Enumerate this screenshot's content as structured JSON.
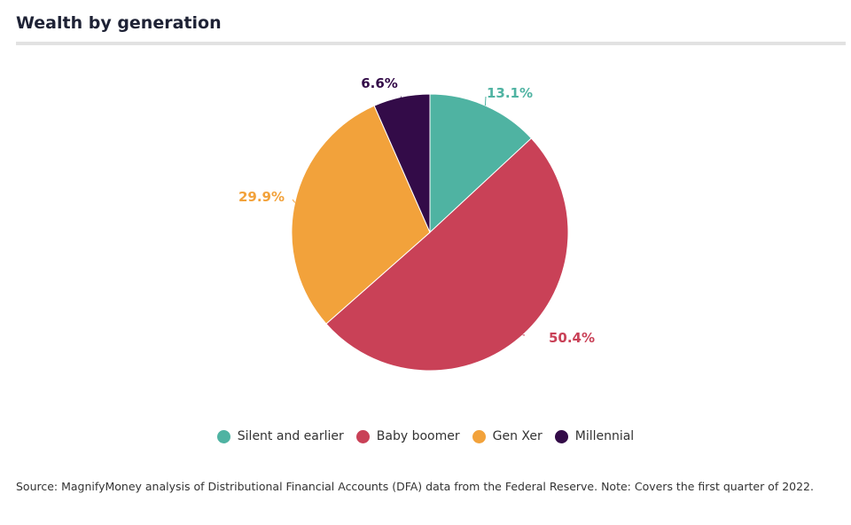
{
  "chart_data": {
    "type": "pie",
    "title": "Wealth by generation",
    "slices": [
      {
        "label": "Silent and earlier",
        "value": 13.1,
        "display": "13.1%",
        "color": "#4fb3a2"
      },
      {
        "label": "Baby boomer",
        "value": 50.4,
        "display": "50.4%",
        "color": "#c94157"
      },
      {
        "label": "Gen Xer",
        "value": 29.9,
        "display": "29.9%",
        "color": "#f2a23b"
      },
      {
        "label": "Millennial",
        "value": 6.6,
        "display": "6.6%",
        "color": "#330b48"
      }
    ],
    "legend_position": "bottom"
  },
  "source": "Source: MagnifyMoney analysis of Distributional Financial Accounts (DFA) data from the Federal Reserve. Note: Covers the first quarter of 2022."
}
